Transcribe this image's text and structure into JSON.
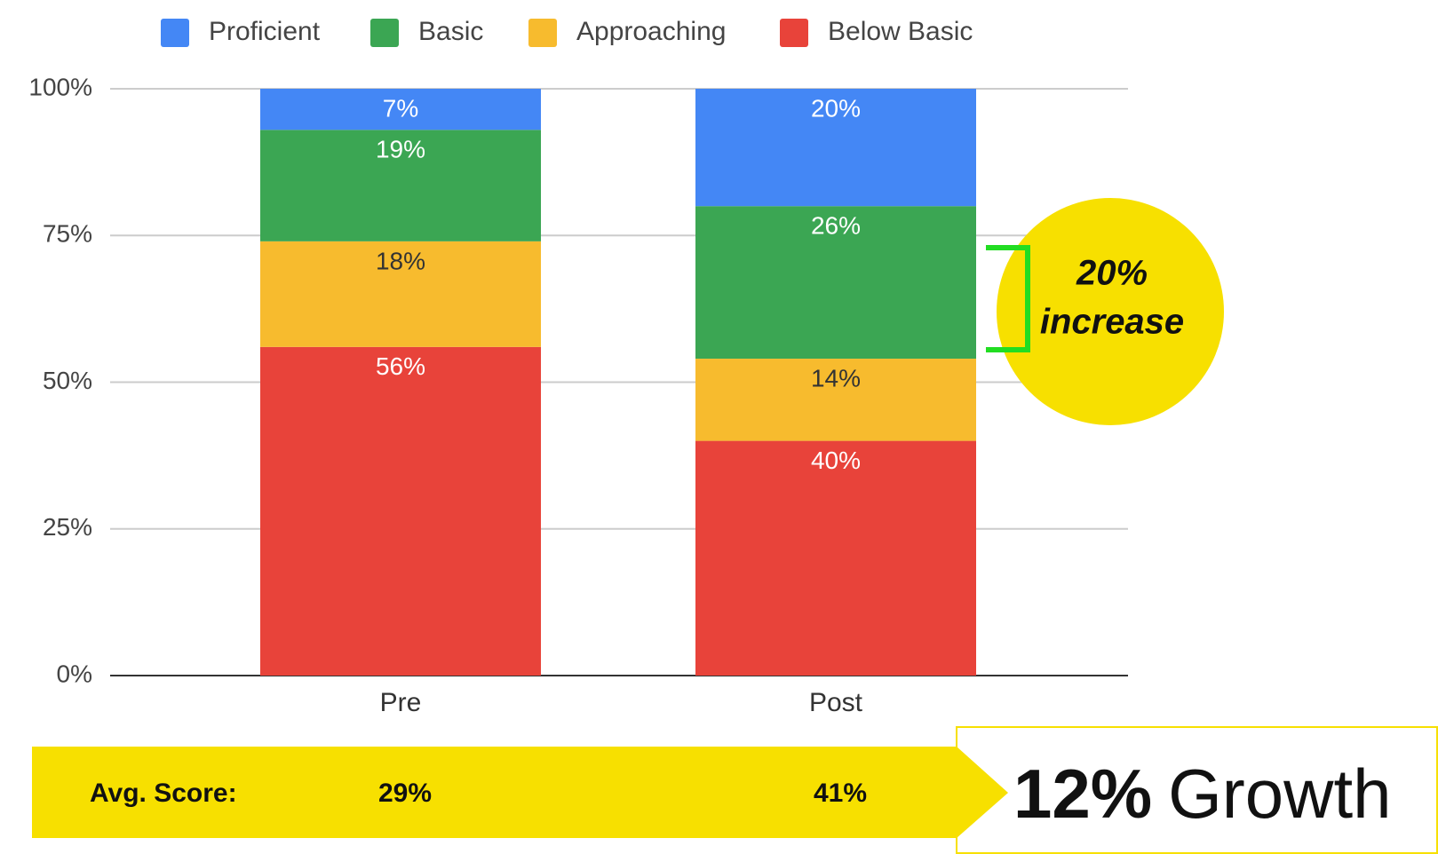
{
  "chart_data": {
    "type": "stacked_bar",
    "categories": [
      "Pre",
      "Post"
    ],
    "series": [
      {
        "name": "Below Basic",
        "color": "#e8433a",
        "label_color": "#ffffff",
        "values": [
          56,
          40
        ],
        "value_labels": [
          "56%",
          "40%"
        ]
      },
      {
        "name": "Approaching",
        "color": "#f7bb2e",
        "label_color": "#333333",
        "values": [
          18,
          14
        ],
        "value_labels": [
          "18%",
          "14%"
        ]
      },
      {
        "name": "Basic",
        "color": "#3ba653",
        "label_color": "#ffffff",
        "values": [
          19,
          26
        ],
        "value_labels": [
          "19%",
          "26%"
        ]
      },
      {
        "name": "Proficient",
        "color": "#4487f5",
        "label_color": "#ffffff",
        "values": [
          7,
          20
        ],
        "value_labels": [
          "7%",
          "20%"
        ]
      }
    ],
    "legend_order": [
      3,
      2,
      1,
      0
    ],
    "ylim": [
      0,
      100
    ],
    "yticks": [
      {
        "value": 0,
        "label": "0%"
      },
      {
        "value": 25,
        "label": "25%"
      },
      {
        "value": 50,
        "label": "50%"
      },
      {
        "value": 75,
        "label": "75%"
      },
      {
        "value": 100,
        "label": "100%"
      }
    ],
    "grid": true,
    "annotation": [
      "20%",
      "increase"
    ],
    "avg_score": {
      "label": "Avg. Score:",
      "values": [
        "29%",
        "41%"
      ]
    },
    "growth": [
      "12%",
      "Growth"
    ]
  }
}
